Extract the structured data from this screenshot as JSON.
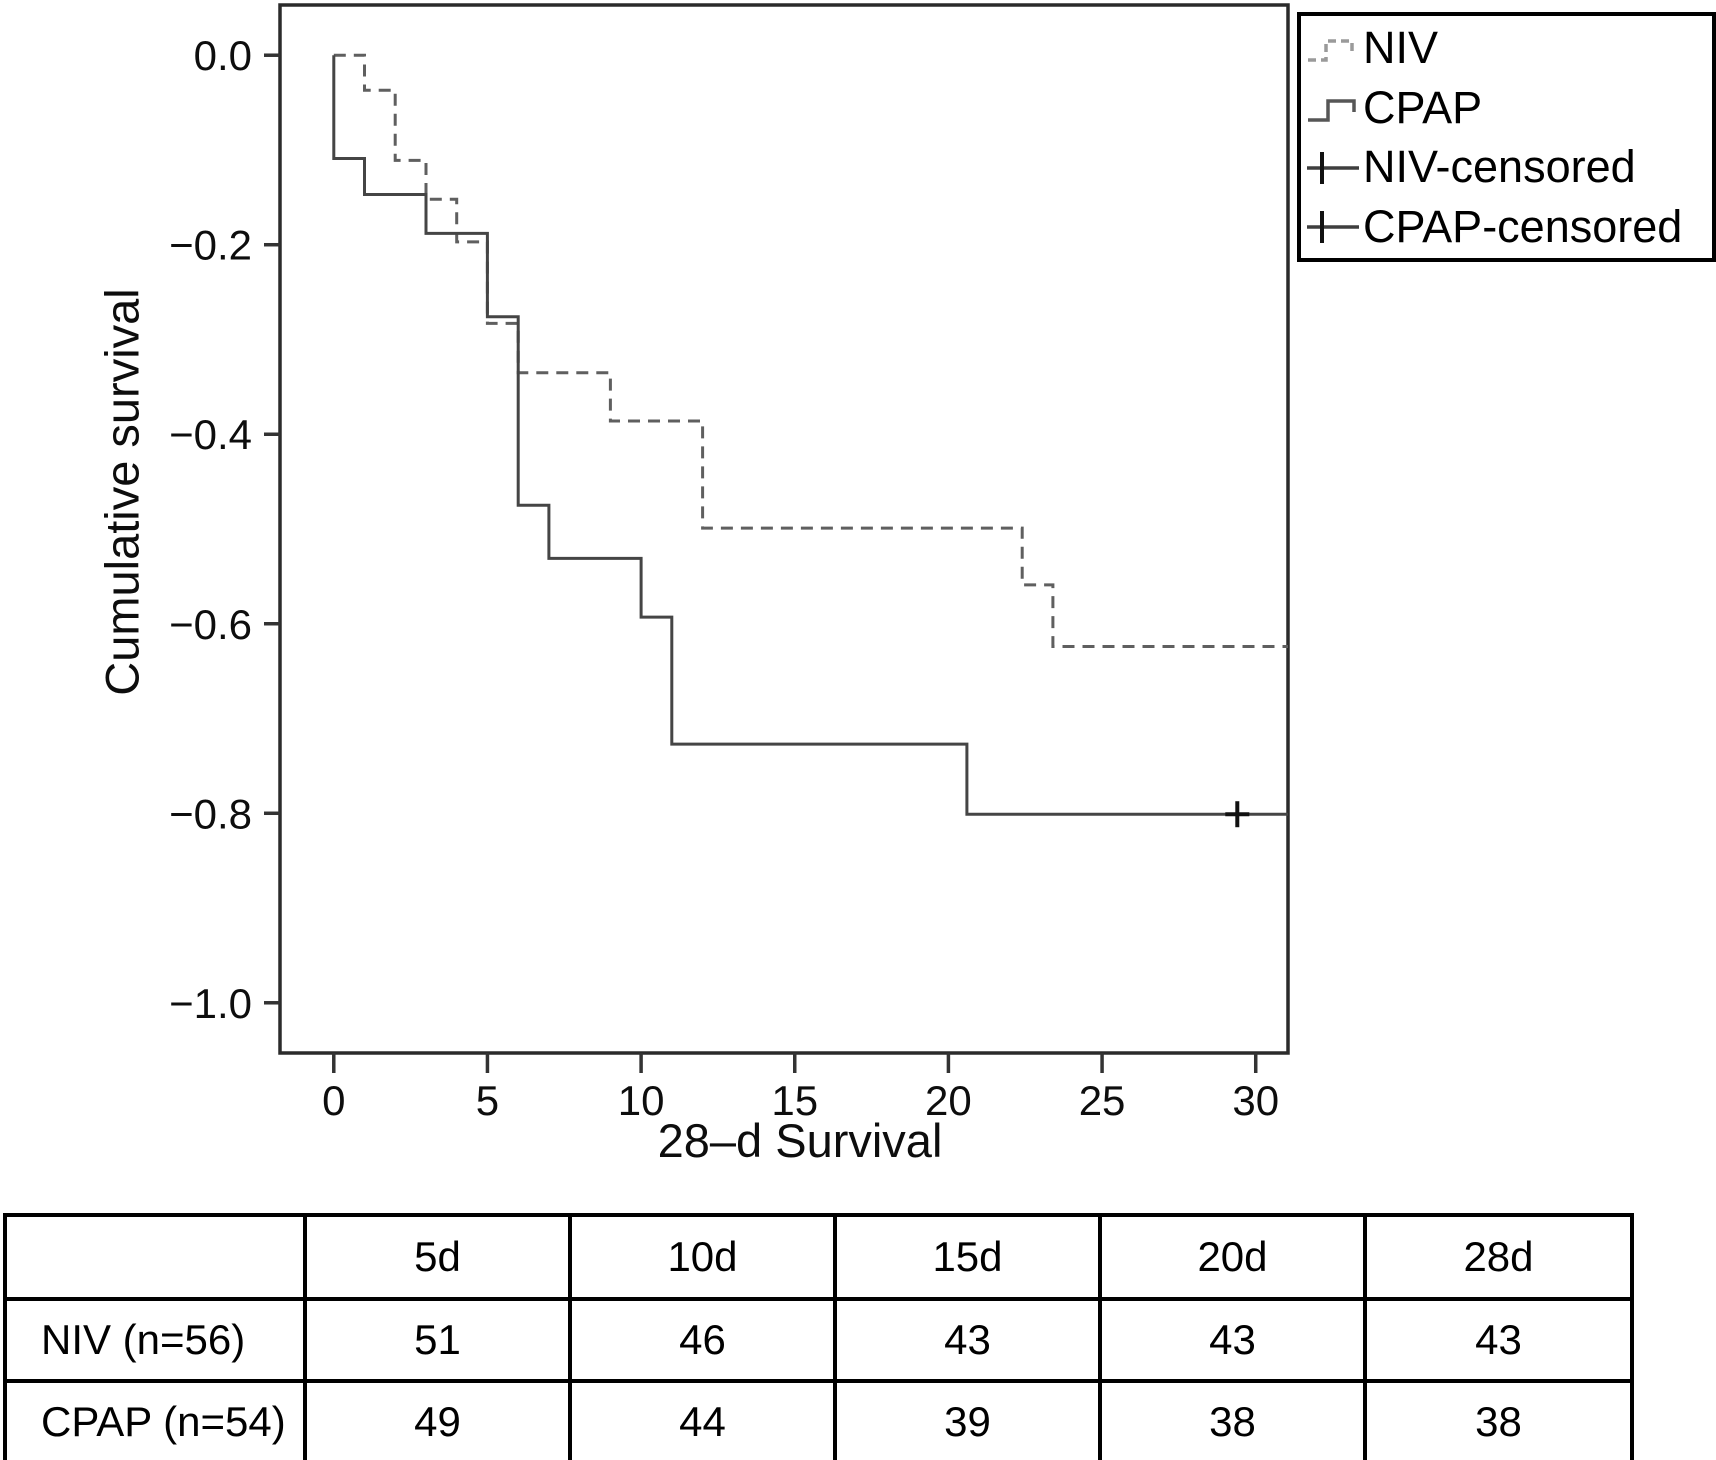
{
  "chart_data": {
    "type": "line",
    "subtype": "kaplan-meier-step",
    "title": "",
    "xlabel": "28–d Survival",
    "ylabel": "Cumulative survival",
    "xlim": [
      -1.75,
      31.05
    ],
    "ylim": [
      -1.053,
      0.053
    ],
    "grid": false,
    "legend_position": "outside-top-right",
    "frame_color": "#2b2b2b",
    "x_ticks": {
      "values": [
        0,
        5,
        10,
        15,
        20,
        25,
        30
      ],
      "labels": [
        "0",
        "5",
        "10",
        "15",
        "20",
        "25",
        "30"
      ]
    },
    "y_ticks": {
      "values": [
        0,
        -0.2,
        -0.4,
        -0.6,
        -0.8,
        -1.0
      ],
      "labels": [
        "0.0",
        "−0.2",
        "−0.4",
        "−0.6",
        "−0.8",
        "−1.0"
      ]
    },
    "series": [
      {
        "name": "NIV",
        "line_style": "dashed",
        "color": "#5f5f5f",
        "points": [
          [
            0,
            0
          ],
          [
            1,
            0
          ],
          [
            1,
            -0.037
          ],
          [
            2,
            -0.037
          ],
          [
            2,
            -0.111
          ],
          [
            3,
            -0.111
          ],
          [
            3,
            -0.152
          ],
          [
            4,
            -0.152
          ],
          [
            4,
            -0.197
          ],
          [
            5,
            -0.197
          ],
          [
            5,
            -0.283
          ],
          [
            6,
            -0.283
          ],
          [
            6,
            -0.335
          ],
          [
            9,
            -0.335
          ],
          [
            9,
            -0.386
          ],
          [
            12,
            -0.386
          ],
          [
            12,
            -0.499
          ],
          [
            22.4,
            -0.499
          ],
          [
            22.4,
            -0.559
          ],
          [
            23.4,
            -0.559
          ],
          [
            23.4,
            -0.624
          ],
          [
            31.05,
            -0.624
          ]
        ]
      },
      {
        "name": "CPAP",
        "line_style": "solid",
        "color": "#454545",
        "points": [
          [
            0,
            0
          ],
          [
            0,
            -0.109
          ],
          [
            1,
            -0.109
          ],
          [
            1,
            -0.147
          ],
          [
            3,
            -0.147
          ],
          [
            3,
            -0.188
          ],
          [
            5,
            -0.188
          ],
          [
            5,
            -0.276
          ],
          [
            6,
            -0.276
          ],
          [
            6,
            -0.475
          ],
          [
            7,
            -0.475
          ],
          [
            7,
            -0.531
          ],
          [
            10,
            -0.531
          ],
          [
            10,
            -0.593
          ],
          [
            11,
            -0.593
          ],
          [
            11,
            -0.727
          ],
          [
            20.6,
            -0.727
          ],
          [
            20.6,
            -0.801
          ],
          [
            31.05,
            -0.801
          ]
        ]
      }
    ],
    "censor_marks": [
      {
        "series": "CPAP",
        "x": 29.4,
        "y": -0.801,
        "color": "#111111"
      }
    ],
    "legend": [
      {
        "label": "NIV",
        "symbol": "dashed-step"
      },
      {
        "label": "CPAP",
        "symbol": "solid-step"
      },
      {
        "label": "NIV-censored",
        "symbol": "plus-line"
      },
      {
        "label": "CPAP-censored",
        "symbol": "plus-line"
      }
    ]
  },
  "risk_table": {
    "columns": [
      "5d",
      "10d",
      "15d",
      "20d",
      "28d"
    ],
    "rows": [
      {
        "label": "NIV (n=56)",
        "values": [
          "51",
          "46",
          "43",
          "43",
          "43"
        ]
      },
      {
        "label": "CPAP (n=54)",
        "values": [
          "49",
          "44",
          "39",
          "38",
          "38"
        ]
      }
    ]
  }
}
